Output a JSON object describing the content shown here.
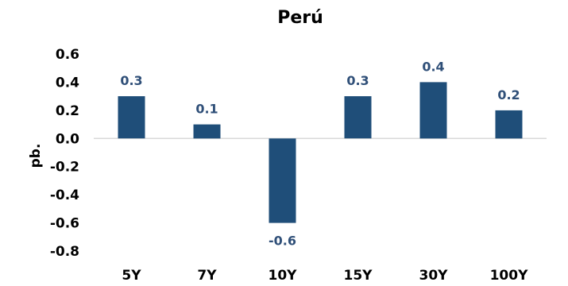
{
  "chart_data": {
    "type": "bar",
    "title": "Perú",
    "xlabel": "",
    "ylabel": "pb.",
    "categories": [
      "5Y",
      "7Y",
      "10Y",
      "15Y",
      "30Y",
      "100Y"
    ],
    "values": [
      0.3,
      0.1,
      -0.6,
      0.3,
      0.4,
      0.2
    ],
    "data_labels": [
      "0.3",
      "0.1",
      "-0.6",
      "0.3",
      "0.4",
      "0.2"
    ],
    "ylim": [
      -0.8,
      0.6
    ],
    "yticks": [
      0.6,
      0.4,
      0.2,
      0.0,
      -0.2,
      -0.4,
      -0.6,
      -0.8
    ],
    "ytick_labels": [
      "0.6",
      "0.4",
      "0.2",
      "0.0",
      "-0.2",
      "-0.4",
      "-0.6",
      "-0.8"
    ],
    "grid": false,
    "legend": "none",
    "colors": {
      "bar": "#1F4E79",
      "data_label": "#2F4F78",
      "zero_line": "#D9D9D9"
    }
  }
}
